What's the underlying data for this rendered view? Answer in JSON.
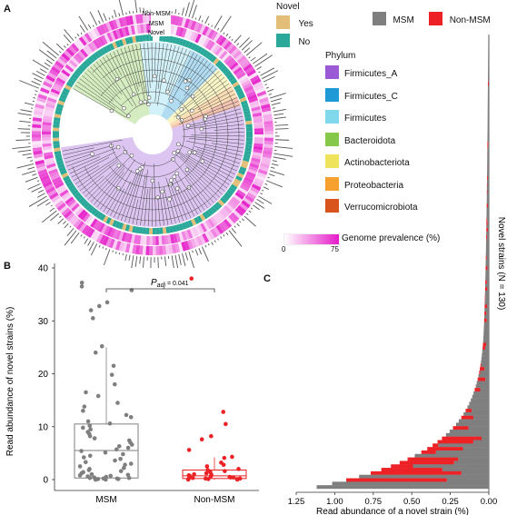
{
  "panels": {
    "a": "A",
    "b": "B",
    "c": "C"
  },
  "tree": {
    "ring_labels": [
      "Non-MSM",
      "MSM",
      "Novel"
    ]
  },
  "novel_legend": {
    "title": "Novel",
    "items": [
      {
        "label": "Yes",
        "color": "#E3BE79"
      },
      {
        "label": "No",
        "color": "#2AA89A"
      }
    ]
  },
  "group_legend": {
    "items": [
      {
        "label": "MSM",
        "color": "#7F7F7F"
      },
      {
        "label": "Non-MSM",
        "color": "#EC2226"
      }
    ]
  },
  "phylum_legend": {
    "title": "Phylum",
    "items": [
      {
        "label": "Firmicutes_A",
        "color": "#9B59D6"
      },
      {
        "label": "Firmicutes_C",
        "color": "#1F9AD6"
      },
      {
        "label": "Firmicutes",
        "color": "#7FD8EC"
      },
      {
        "label": "Bacteroidota",
        "color": "#86C84A"
      },
      {
        "label": "Actinobacteriota",
        "color": "#EFE35C"
      },
      {
        "label": "Proteobacteria",
        "color": "#F5A02F"
      },
      {
        "label": "Verrucomicrobiota",
        "color": "#D9541C"
      }
    ]
  },
  "prevalence_legend": {
    "title": "Genome prevalence (%)",
    "min": "0",
    "max": "75",
    "color_low": "#ffffff",
    "color_high": "#E51BC9"
  },
  "chart_data": [
    {
      "type": "box",
      "title": "",
      "annotation": "Padj = 0.041",
      "annotation_main": "P",
      "annotation_sub": "adj",
      "annotation_value": " = 0.041",
      "xlabel": "",
      "ylabel": "Read abundance of novel strains (%)",
      "categories": [
        "MSM",
        "Non-MSM"
      ],
      "ylim": [
        0,
        40
      ],
      "yticks": [
        "0",
        "10",
        "20",
        "30",
        "40"
      ],
      "colors": {
        "MSM": "#7F7F7F",
        "Non-MSM": "#EC2226"
      },
      "series": [
        {
          "name": "MSM",
          "box": {
            "q1": 0.3,
            "median": 5.5,
            "q3": 10.5,
            "whisker_low": 0,
            "whisker_high": 25
          },
          "points": [
            37.2,
            36.5,
            35.8,
            33.5,
            32.8,
            32.0,
            30.5,
            25.2,
            24.0,
            21.5,
            19.8,
            18.0,
            16.5,
            15.8,
            14.5,
            13.8,
            13.0,
            12.2,
            11.8,
            11.0,
            10.6,
            10.2,
            9.8,
            9.5,
            9.0,
            8.6,
            8.2,
            7.8,
            7.4,
            7.0,
            6.6,
            6.3,
            6.0,
            5.7,
            5.4,
            5.1,
            4.8,
            4.5,
            4.2,
            3.9,
            3.6,
            3.3,
            3.0,
            2.8,
            2.5,
            2.2,
            2.0,
            1.8,
            1.6,
            1.4,
            1.2,
            1.0,
            0.9,
            0.8,
            0.7,
            0.6,
            0.5,
            0.4,
            0.3,
            0.3,
            0.2,
            0.2,
            0.1,
            0.1,
            0.1,
            0.0,
            0.0,
            0.0
          ]
        },
        {
          "name": "Non-MSM",
          "box": {
            "q1": 0.2,
            "median": 0.7,
            "q3": 1.8,
            "whisker_low": 0,
            "whisker_high": 4.2
          },
          "points": [
            38.0,
            12.8,
            10.5,
            8.2,
            7.6,
            5.6,
            4.3,
            4.1,
            3.2,
            2.8,
            2.5,
            2.0,
            1.8,
            1.6,
            1.4,
            1.2,
            1.0,
            0.9,
            0.8,
            0.7,
            0.6,
            0.5,
            0.4,
            0.4,
            0.3,
            0.3,
            0.2,
            0.2,
            0.1,
            0.1,
            0.0,
            0.0
          ]
        }
      ]
    },
    {
      "type": "bar",
      "title": "",
      "xlabel": "Read abundance of a novel strain (%)",
      "ylabel": "Novel strains (N = 130)",
      "xlim": [
        1.25,
        0.0
      ],
      "xticks": [
        "1.25",
        "1.00",
        "0.75",
        "0.50",
        "0.25",
        "0.00"
      ],
      "series": [
        {
          "name": "MSM",
          "color": "#7F7F7F"
        },
        {
          "name": "Non-MSM",
          "color": "#EC2226"
        }
      ]
    }
  ]
}
